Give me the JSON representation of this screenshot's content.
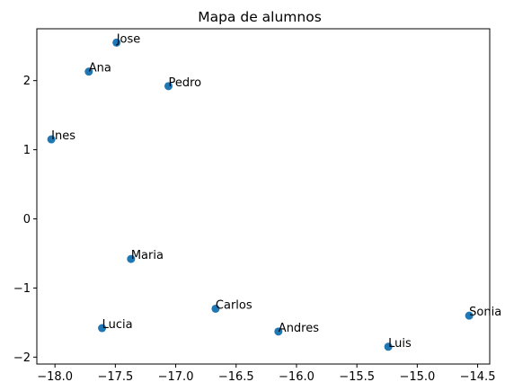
{
  "chart_data": {
    "type": "scatter",
    "title": "Mapa de alumnos",
    "xlabel": "",
    "ylabel": "",
    "xlim": [
      -18.15,
      -14.4
    ],
    "ylim": [
      -2.1,
      2.75
    ],
    "xticks": [
      -18.0,
      -17.5,
      -17.0,
      -16.5,
      -16.0,
      -15.5,
      -15.0,
      -14.5
    ],
    "xtick_labels": [
      "−18.0",
      "−17.5",
      "−17.0",
      "−16.5",
      "−16.0",
      "−15.5",
      "−15.0",
      "−14.5"
    ],
    "yticks": [
      -2,
      -1,
      0,
      1,
      2
    ],
    "ytick_labels": [
      "−2",
      "−1",
      "0",
      "1",
      "2"
    ],
    "grid": false,
    "legend": "none",
    "marker_color": "#1f77b4",
    "points": [
      {
        "label": "Jose",
        "x": -17.49,
        "y": 2.55
      },
      {
        "label": "Ana",
        "x": -17.72,
        "y": 2.13
      },
      {
        "label": "Pedro",
        "x": -17.06,
        "y": 1.92
      },
      {
        "label": "Ines",
        "x": -18.03,
        "y": 1.15
      },
      {
        "label": "Maria",
        "x": -17.37,
        "y": -0.58
      },
      {
        "label": "Carlos",
        "x": -16.67,
        "y": -1.3
      },
      {
        "label": "Lucia",
        "x": -17.61,
        "y": -1.58
      },
      {
        "label": "Andres",
        "x": -16.15,
        "y": -1.63
      },
      {
        "label": "Sonia",
        "x": -14.57,
        "y": -1.4
      },
      {
        "label": "Luis",
        "x": -15.24,
        "y": -1.85
      }
    ]
  }
}
